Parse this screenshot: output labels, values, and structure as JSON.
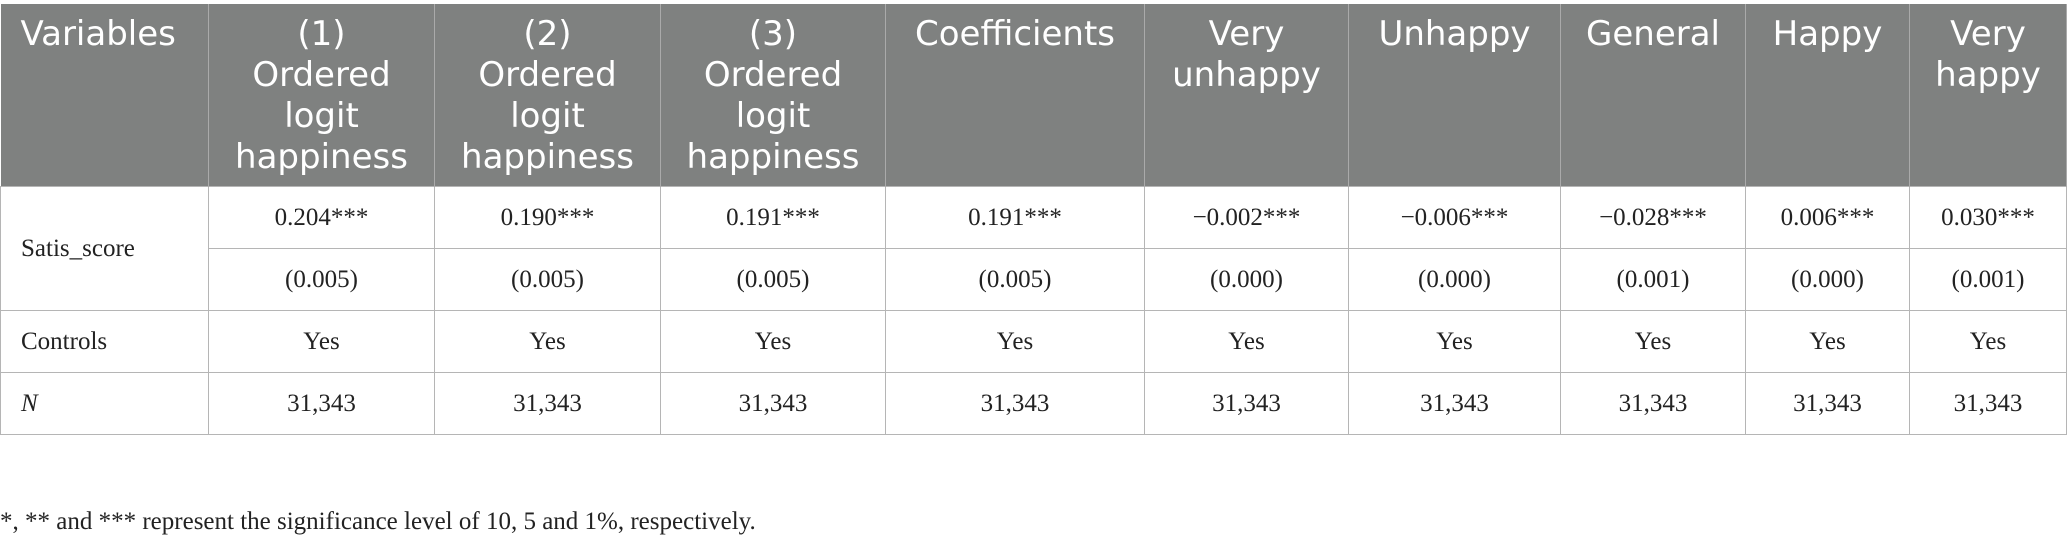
{
  "table": {
    "headers": [
      "Variables",
      "(1) Ordered logit happiness",
      "(2) Ordered logit happiness",
      "(3) Ordered logit happiness",
      "Coefficients",
      "Very unhappy",
      "Unhappy",
      "General",
      "Happy",
      "Very happy"
    ],
    "rows": [
      {
        "label": "Satis_score",
        "values": [
          "0.204***",
          "0.190***",
          "0.191***",
          "0.191***",
          "−0.002***",
          "−0.006***",
          "−0.028***",
          "0.006***",
          "0.030***"
        ],
        "se": [
          "(0.005)",
          "(0.005)",
          "(0.005)",
          "(0.005)",
          "(0.000)",
          "(0.000)",
          "(0.001)",
          "(0.000)",
          "(0.001)"
        ]
      },
      {
        "label": "Controls",
        "values": [
          "Yes",
          "Yes",
          "Yes",
          "Yes",
          "Yes",
          "Yes",
          "Yes",
          "Yes",
          "Yes"
        ]
      },
      {
        "label": "N",
        "values": [
          "31,343",
          "31,343",
          "31,343",
          "31,343",
          "31,343",
          "31,343",
          "31,343",
          "31,343",
          "31,343"
        ]
      }
    ]
  },
  "footnote": "*, ** and *** represent the significance level of 10, 5 and 1%, respectively."
}
